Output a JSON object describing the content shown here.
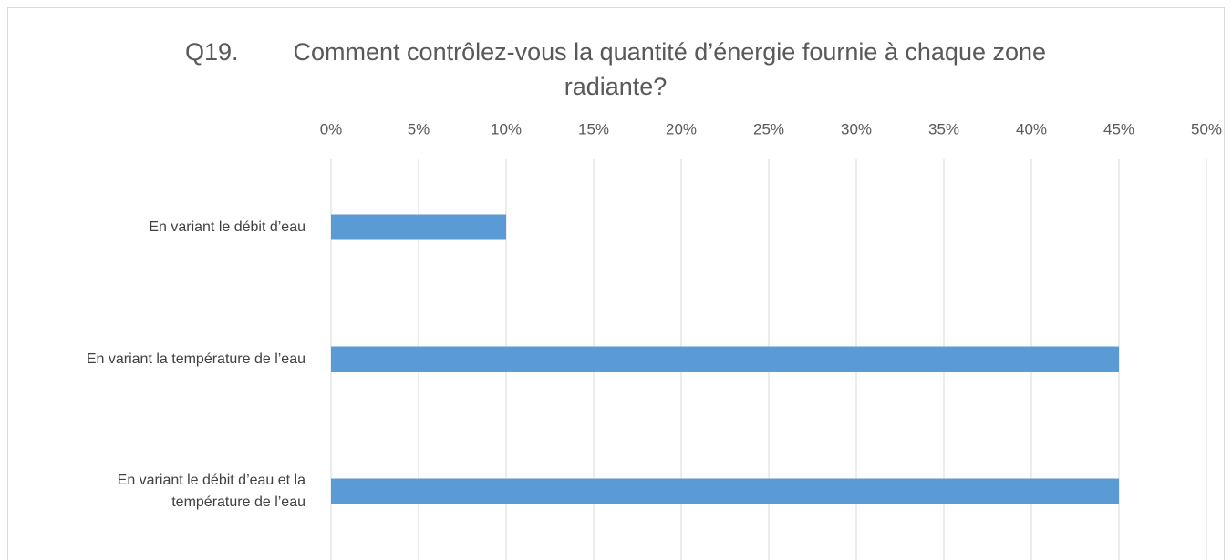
{
  "chart_data": {
    "type": "barh",
    "title": "Q19.        Comment contrôlez-vous la quantité d’énergie fournie à chaque zone radiante?",
    "categories": [
      "En variant le débit d’eau",
      "En variant la température de l’eau",
      "En variant le débit d’eau et la température de l’eau"
    ],
    "values": [
      10,
      45,
      45
    ],
    "color": "#5b9bd5",
    "xlim": [
      0,
      50
    ],
    "xticks": [
      {
        "value": 0,
        "label": "0%"
      },
      {
        "value": 5,
        "label": "5%"
      },
      {
        "value": 10,
        "label": "10%"
      },
      {
        "value": 15,
        "label": "15%"
      },
      {
        "value": 20,
        "label": "20%"
      },
      {
        "value": 25,
        "label": "25%"
      },
      {
        "value": 30,
        "label": "30%"
      },
      {
        "value": 35,
        "label": "35%"
      },
      {
        "value": 40,
        "label": "40%"
      },
      {
        "value": 45,
        "label": "45%"
      },
      {
        "value": 50,
        "label": "50%"
      }
    ],
    "grid": true
  }
}
